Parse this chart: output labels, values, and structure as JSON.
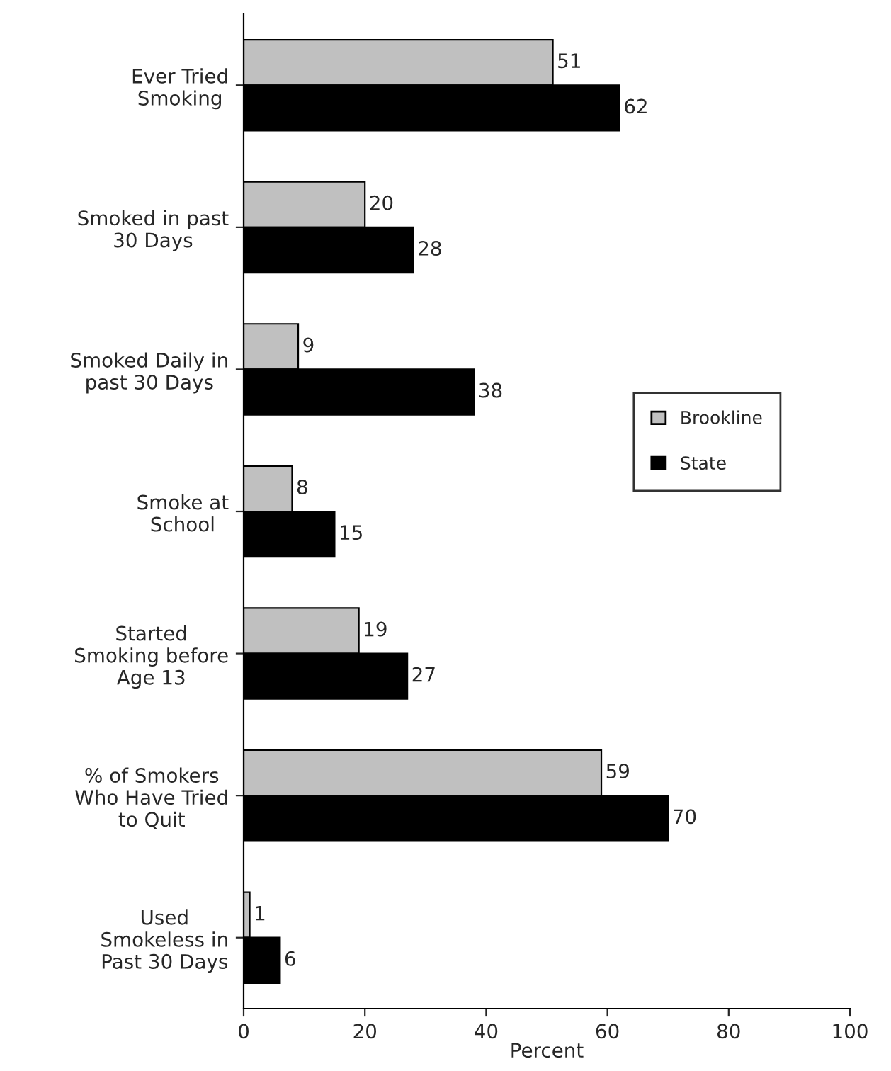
{
  "chart_data": {
    "type": "bar",
    "orientation": "horizontal",
    "categories": [
      "Ever Tried\nSmoking",
      "Smoked in past\n30 Days",
      "Smoked Daily in\npast 30 Days",
      "Smoke at\nSchool",
      "Started\nSmoking before\nAge 13",
      "% of Smokers\nWho Have Tried\nto Quit",
      "Used\nSmokeless in\nPast 30 Days"
    ],
    "series": [
      {
        "name": "Brookline",
        "color": "#c0c0c0",
        "values": [
          51,
          20,
          9,
          8,
          19,
          59,
          1
        ]
      },
      {
        "name": "State",
        "color": "#000000",
        "values": [
          62,
          28,
          38,
          15,
          27,
          70,
          6
        ]
      }
    ],
    "xlim": [
      0,
      100
    ],
    "xticks": [
      0,
      20,
      40,
      60,
      80,
      100
    ],
    "xlabel": "Percent",
    "data_labels": true,
    "grid": false,
    "legend": "right"
  }
}
